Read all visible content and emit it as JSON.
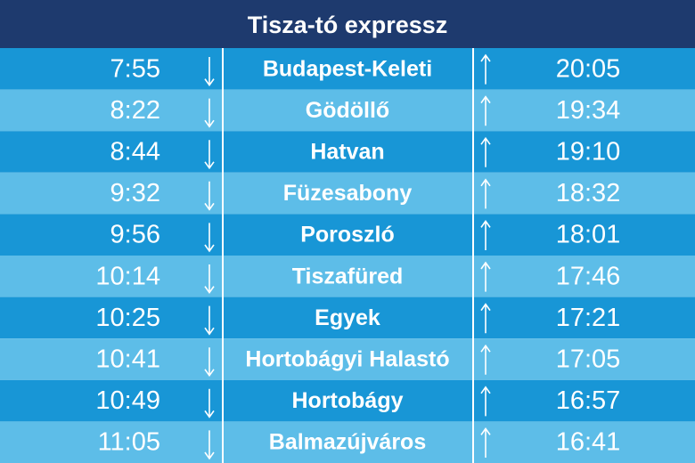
{
  "header": {
    "title": "Tisza-tó expressz"
  },
  "table": {
    "rows": [
      [
        "7:55",
        "Budapest-Keleti",
        "20:05"
      ],
      [
        "8:22",
        "Gödöllő",
        "19:34"
      ],
      [
        "8:44",
        "Hatvan",
        "19:10"
      ],
      [
        "9:32",
        "Füzesabony",
        "18:32"
      ],
      [
        "9:56",
        "Poroszló",
        "18:01"
      ],
      [
        "10:14",
        "Tiszafüred",
        "17:46"
      ],
      [
        "10:25",
        "Egyek",
        "17:21"
      ],
      [
        "10:41",
        "Hortobágyi Halastó",
        "17:05"
      ],
      [
        "10:49",
        "Hortobágy",
        "16:57"
      ],
      [
        "11:05",
        "Balmazújváros",
        "16:41"
      ]
    ]
  }
}
